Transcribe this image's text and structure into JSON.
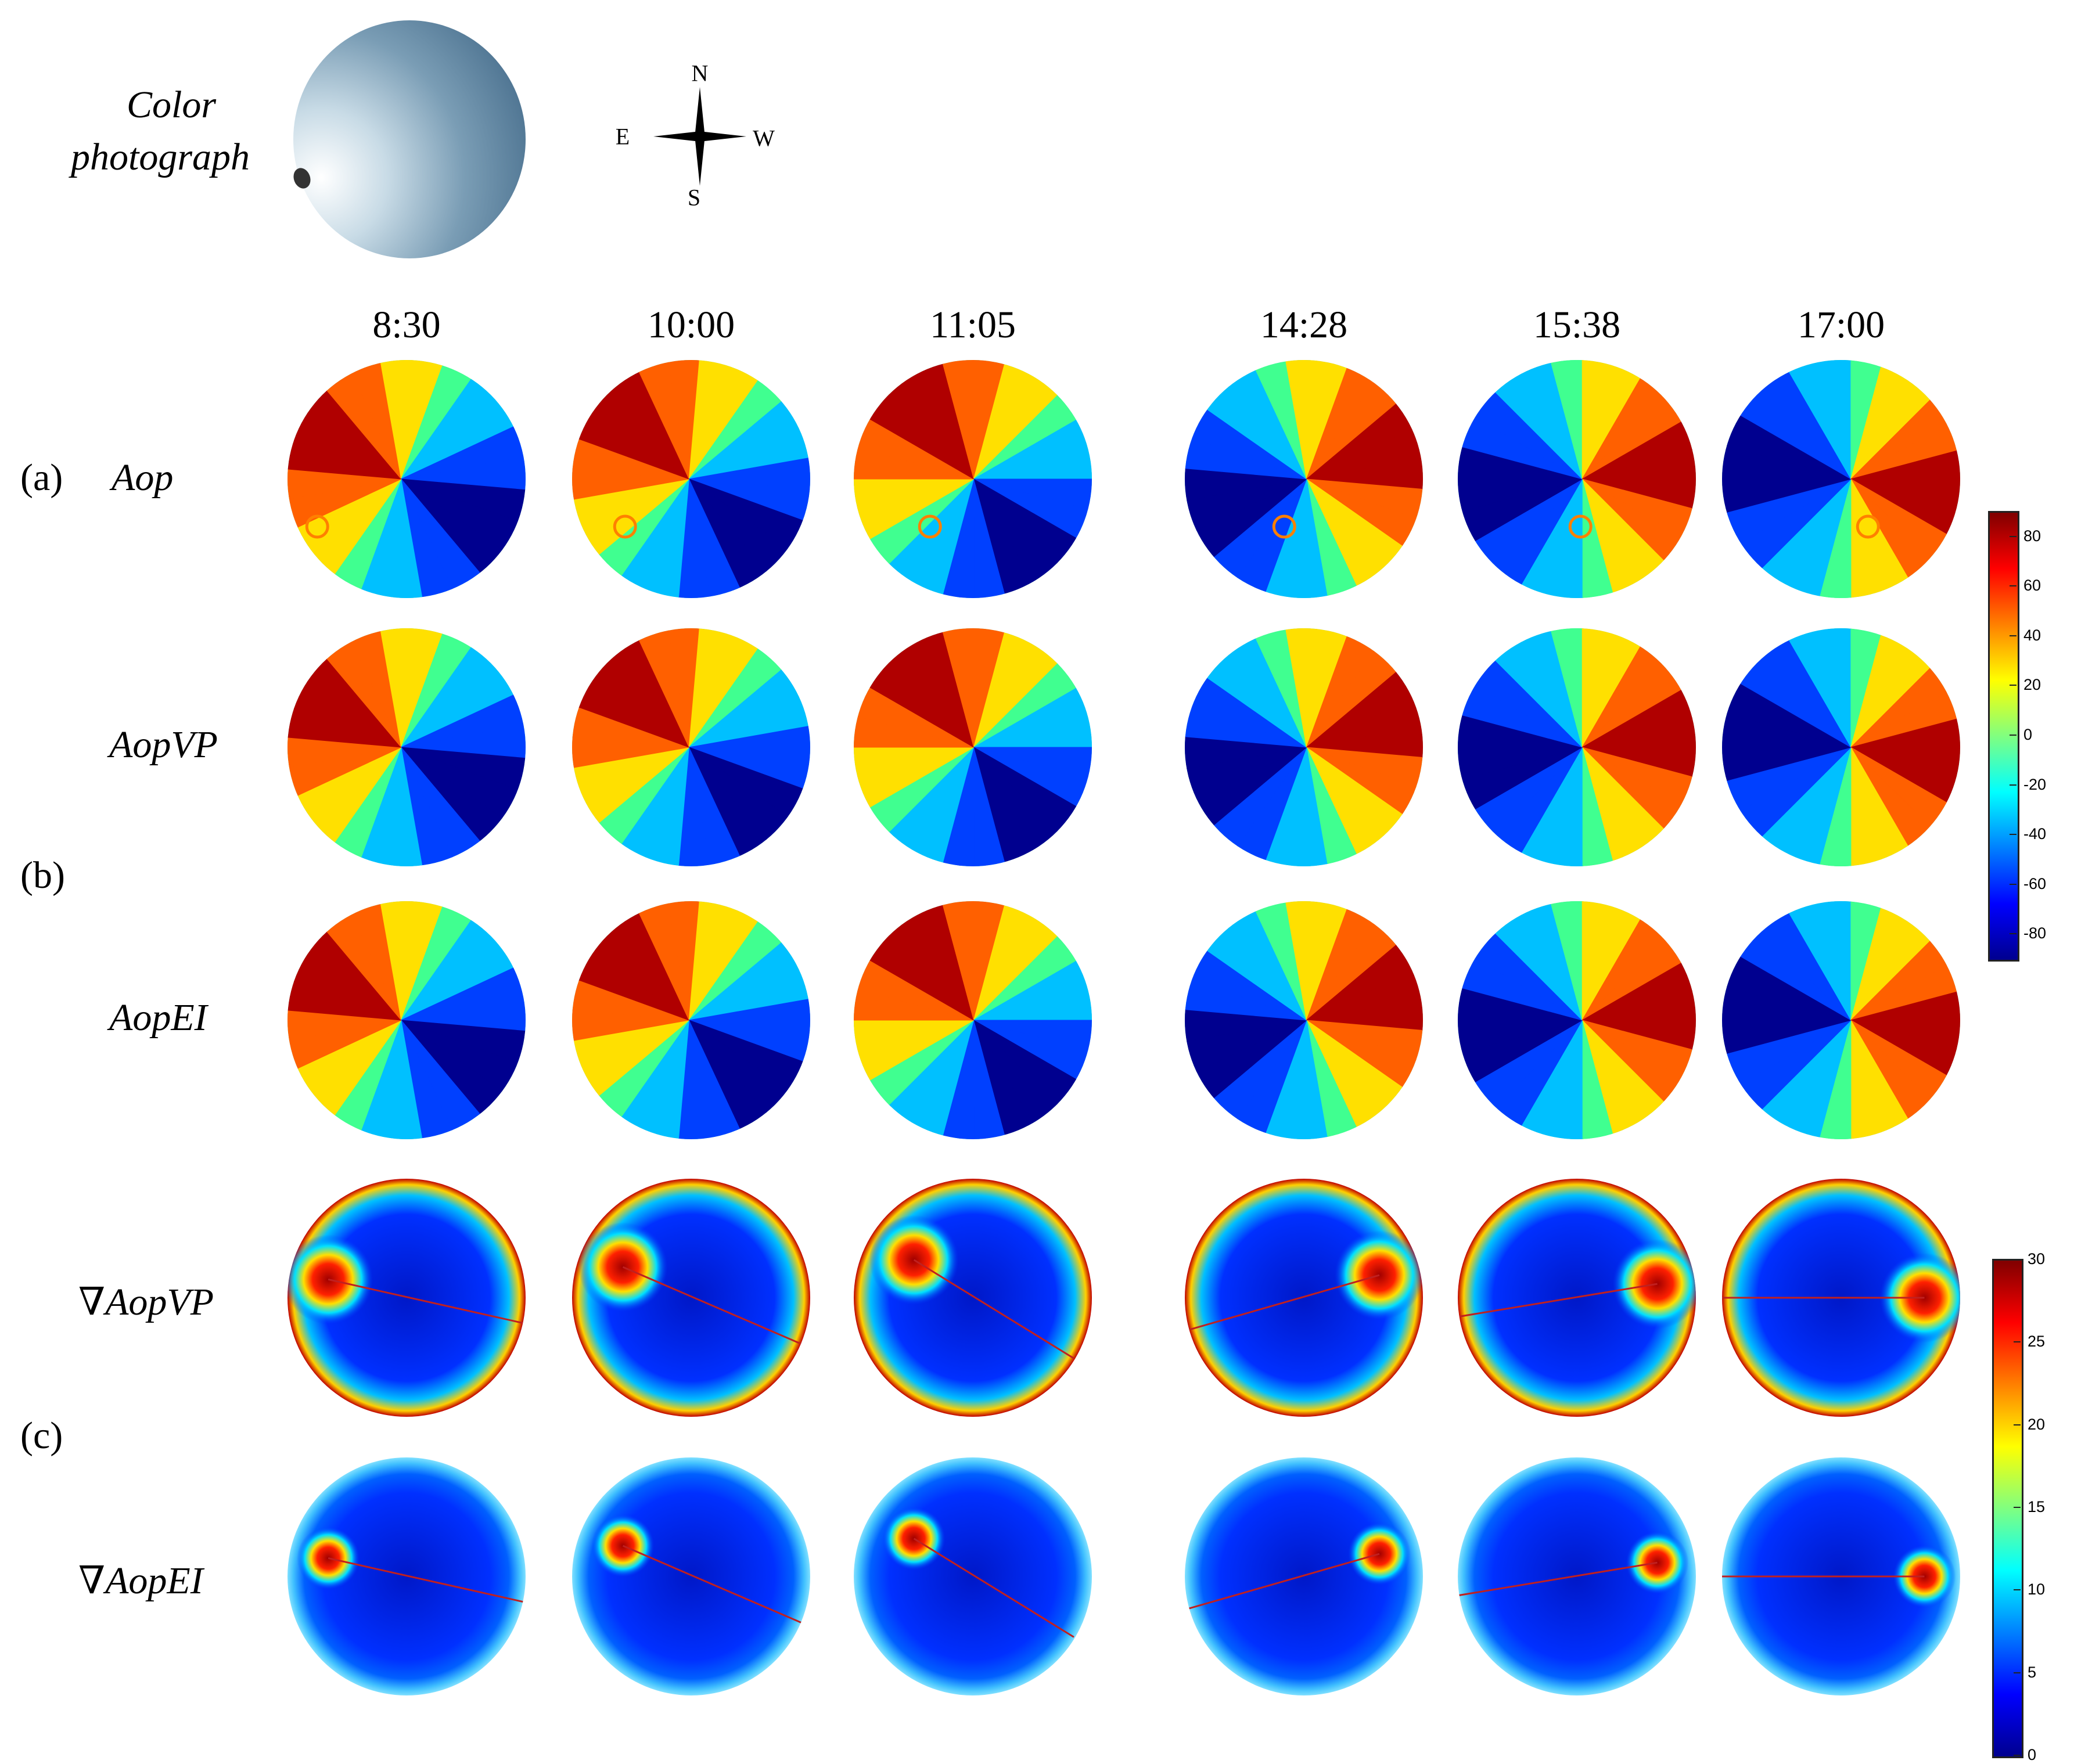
{
  "photo": {
    "label_line1": "Color",
    "label_line2": "photograph"
  },
  "compass": {
    "N": "N",
    "S": "S",
    "E": "E",
    "W": "W"
  },
  "times": [
    "8:30",
    "10:00",
    "11:05",
    "14:28",
    "15:38",
    "17:00"
  ],
  "groups": {
    "a": "(a)",
    "b": "(b)",
    "c": "(c)"
  },
  "rows": [
    {
      "key": "aop",
      "prefix": "",
      "name": "Aop",
      "kind": "aop",
      "noisy": true
    },
    {
      "key": "aopvp",
      "prefix": "",
      "name": "AopVP",
      "kind": "aop",
      "noisy": false
    },
    {
      "key": "aopei",
      "prefix": "",
      "name": "AopEI",
      "kind": "aop",
      "noisy": false
    },
    {
      "key": "gradvp",
      "prefix": "∇",
      "name": "AopVP",
      "kind": "grad",
      "strength": 1.0
    },
    {
      "key": "gradei",
      "prefix": "∇",
      "name": "AopEI",
      "kind": "grad",
      "strength": 0.45
    }
  ],
  "scene": {
    "sun_angle_deg": [
      200,
      215,
      225,
      -25,
      -15,
      0
    ],
    "center_dx": [
      -0.3,
      -0.12,
      0.05,
      0.15,
      0.3,
      0.55
    ],
    "aop_colors": [
      "#00008f",
      "#0040ff",
      "#00c0ff",
      "#40ff90",
      "#ffe000",
      "#ff6000",
      "#b00000"
    ]
  },
  "colorbar_aop": {
    "ticks": [
      "80",
      "60",
      "40",
      "20",
      "0",
      "-20",
      "-40",
      "-60",
      "-80"
    ],
    "min": -90,
    "max": 90
  },
  "colorbar_grad": {
    "ticks": [
      "30",
      "25",
      "20",
      "15",
      "10",
      "5",
      "0"
    ],
    "min": 0,
    "max": 30
  }
}
